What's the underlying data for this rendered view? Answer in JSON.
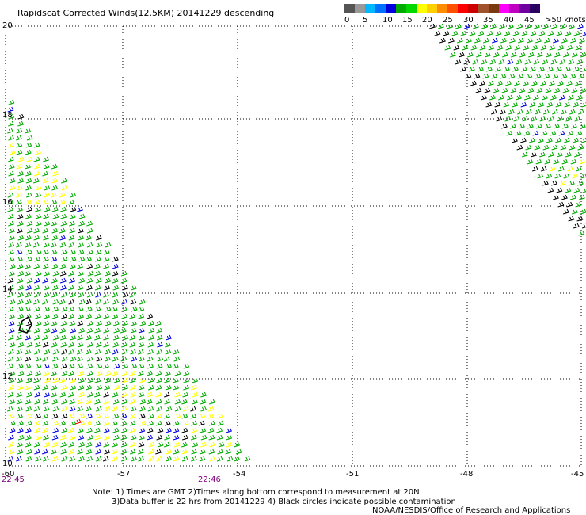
{
  "title": "Rapidscat Corrected Winds(12.5KM) 20141229 descending",
  "legend": {
    "colors": [
      "#555555",
      "#999999",
      "#00b8ff",
      "#0070ff",
      "#0000dd",
      "#00aa00",
      "#00d800",
      "#ffff00",
      "#ffd000",
      "#ff8c00",
      "#ff5000",
      "#ff0000",
      "#cc0000",
      "#a0522d",
      "#7a3a10",
      "#ff00ff",
      "#c000c0",
      "#7000a0",
      "#2a0060"
    ],
    "labels": [
      "0",
      "5",
      "10",
      "15",
      "20",
      "25",
      "30",
      "35",
      "40",
      "45",
      ">50 knots"
    ]
  },
  "map": {
    "latitudes": [
      "20",
      "18",
      "16",
      "14",
      "12",
      "10"
    ],
    "longitudes": [
      "-60",
      "-57",
      "-54",
      "-51",
      "-48",
      "-45"
    ],
    "pass_times": [
      "22:45",
      "22:46"
    ],
    "gridline_style": "dotted",
    "wind_colors": {
      "calm": "#000000",
      "light": "#0000dd",
      "moderate": "#00aa00",
      "fresh": "#ffff00",
      "strong": "#ff0000"
    }
  },
  "notes": {
    "line1": "Note: 1) Times are GMT 2)Times along bottom correspond to measurement at 20N",
    "line2": "3)Data buffer is 22 hrs from 20141229 4) Black circles indicate possible contamination",
    "credit": "NOAA/NESDIS/Office of Research and Applications"
  }
}
